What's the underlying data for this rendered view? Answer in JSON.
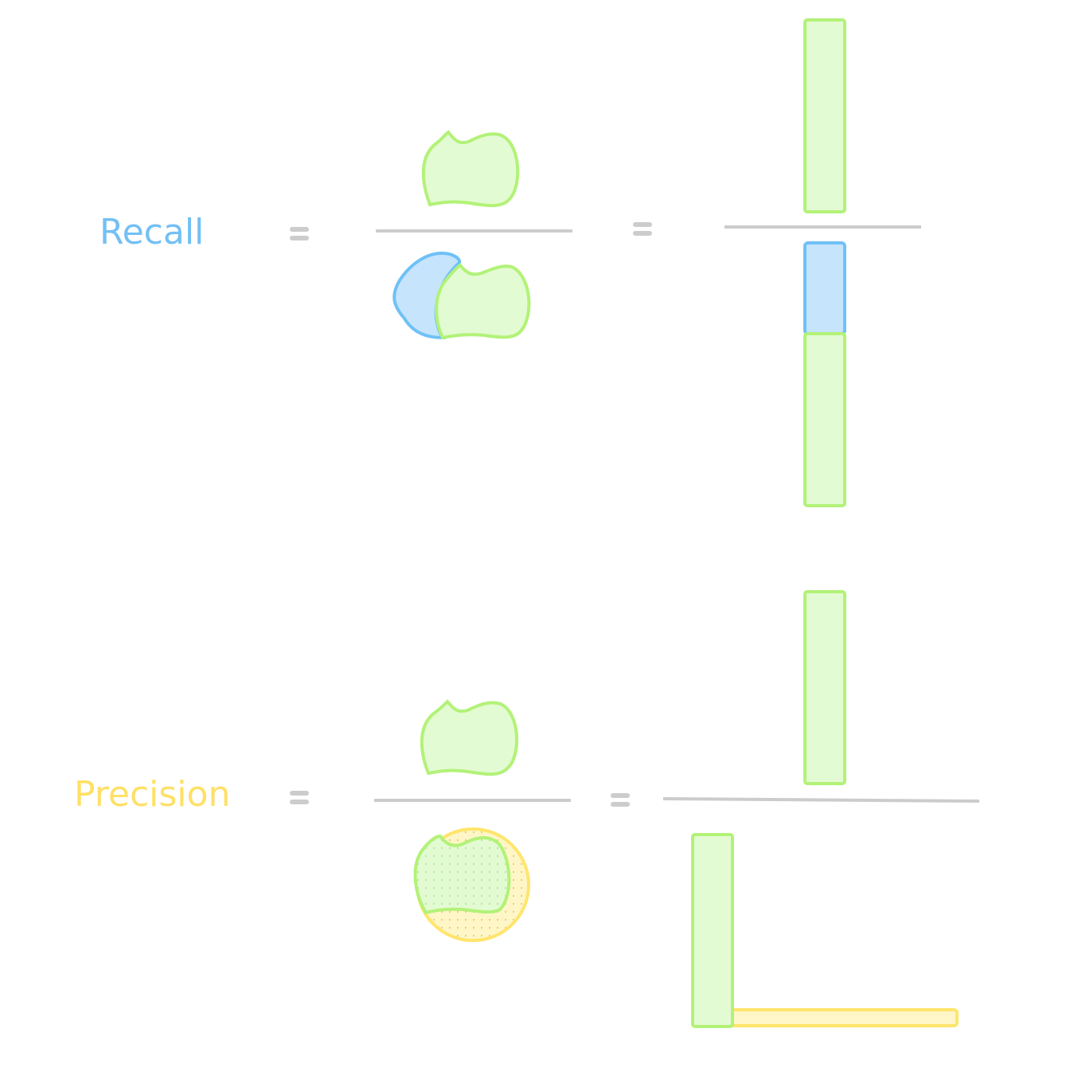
{
  "recall": {
    "label": "Recall"
  },
  "precision": {
    "label": "Precision"
  },
  "colors": {
    "true_positive_fill": "#e3fbd2",
    "true_positive_stroke": "#b2f278",
    "false_negative_fill": "#c7e4fd",
    "false_negative_stroke": "#6fc1f7",
    "false_positive_fill": "#fff6c8",
    "false_positive_stroke": "#ffe56b",
    "operator": "#cccccc",
    "recall_text": "#73c0f4",
    "precision_text": "#ffe066"
  }
}
